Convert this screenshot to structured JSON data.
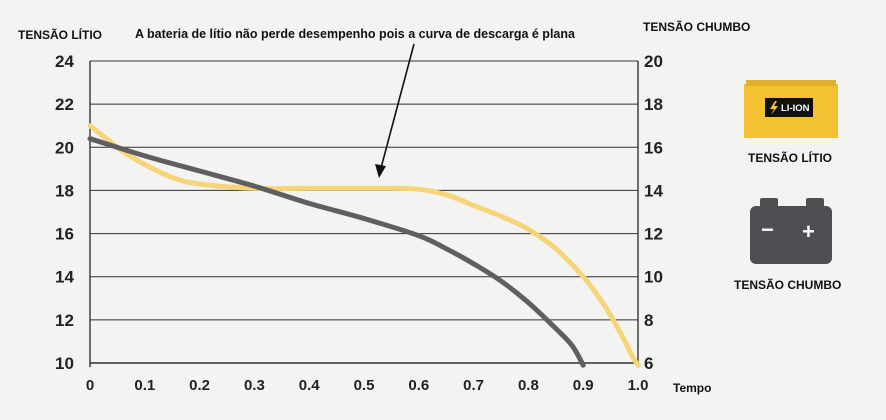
{
  "colors": {
    "lithium": "#f5d47a",
    "lead": "#5f5f61",
    "grid": "#333333",
    "badge": "#f2c233"
  },
  "chart_data": {
    "type": "line",
    "title": "",
    "annotation": "A bateria de lítio não perde desempenho pois a curva de descarga é plana",
    "xlabel": "Tempo",
    "ylabel_left": "TENSÃO LÍTIO",
    "ylabel_right": "TENSÃO CHUMBO",
    "xlim": [
      0,
      1.0
    ],
    "ylim_left": [
      10,
      24
    ],
    "ylim_right": [
      6,
      20
    ],
    "x_ticks": [
      "0",
      "0.1",
      "0.2",
      "0.3",
      "0.4",
      "0.5",
      "0.6",
      "0.7",
      "0.8",
      "0.9",
      "1.0"
    ],
    "y_ticks_left": [
      "10",
      "12",
      "14",
      "16",
      "18",
      "20",
      "22",
      "24"
    ],
    "y_ticks_right": [
      "6",
      "8",
      "10",
      "12",
      "14",
      "16",
      "18",
      "20"
    ],
    "grid": "horizontal",
    "series": [
      {
        "name": "TENSÃO LÍTIO",
        "axis": "left",
        "color": "#f5d47a",
        "x": [
          0,
          0.03,
          0.06,
          0.1,
          0.15,
          0.2,
          0.3,
          0.4,
          0.5,
          0.55,
          0.6,
          0.65,
          0.7,
          0.75,
          0.8,
          0.85,
          0.9,
          0.93,
          0.95,
          0.97,
          0.99,
          1.0
        ],
        "y": [
          21.0,
          20.4,
          19.8,
          19.2,
          18.6,
          18.3,
          18.1,
          18.1,
          18.1,
          18.1,
          18.05,
          17.8,
          17.3,
          16.8,
          16.2,
          15.3,
          14.0,
          13.0,
          12.2,
          11.3,
          10.3,
          9.9
        ]
      },
      {
        "name": "TENSÃO CHUMBO",
        "axis": "right",
        "color": "#5f5f61",
        "x": [
          0,
          0.1,
          0.2,
          0.3,
          0.4,
          0.5,
          0.6,
          0.65,
          0.7,
          0.75,
          0.8,
          0.85,
          0.88,
          0.9
        ],
        "y": [
          16.4,
          15.6,
          14.9,
          14.2,
          13.4,
          12.7,
          11.9,
          11.3,
          10.6,
          9.8,
          8.8,
          7.6,
          6.8,
          5.9
        ]
      }
    ]
  },
  "legend": {
    "lithium_caption": "TENSÃO LÍTIO",
    "lithium_badge_text": "LI-ION",
    "lead_caption": "TENSÃO CHUMBO",
    "lead_minus": "−",
    "lead_plus": "+"
  }
}
